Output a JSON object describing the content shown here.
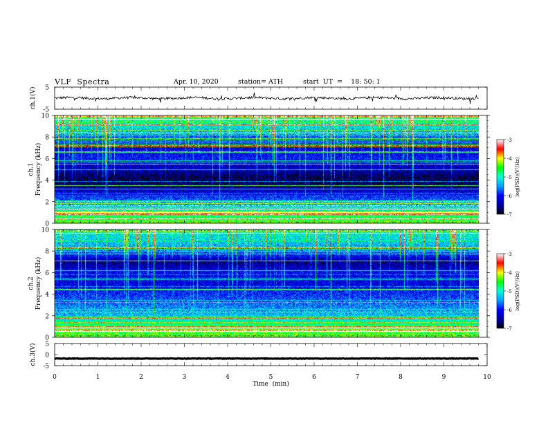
{
  "header": {
    "title": "VLF  Spectra",
    "date": "Apr. 10, 2020",
    "station": "station= ATH",
    "start": "start  UT  =    18: 50: 1"
  },
  "chart_data": [
    {
      "type": "line",
      "name": "ch.1 waveform",
      "ylabel": "ch.1(V)",
      "ylim": [
        -5,
        5
      ],
      "yticks": [
        "5",
        "-5"
      ],
      "xlim": [
        0,
        10
      ],
      "level": 0.0,
      "noise": "small fluctuations around 0 V with occasional spikes"
    },
    {
      "type": "heatmap",
      "name": "ch.1 spectrogram",
      "ylabel": "ch.1\nFrequency (kHz)",
      "ylim": [
        0,
        10
      ],
      "yticks": [
        "0",
        "2",
        "4",
        "6",
        "8",
        "10"
      ],
      "xlim": [
        0,
        9.8
      ],
      "colorbar": {
        "label": "log(PSD)(V²/Hz)",
        "range": [
          -7,
          -3
        ],
        "ticks": [
          "-3",
          "-4",
          "-5",
          "-6",
          "-7"
        ],
        "colors": [
          "#000000",
          "#0000ff",
          "#00ffff",
          "#00ff00",
          "#ffff00",
          "#ff0000",
          "#ffffff"
        ]
      },
      "profile_khz_to_logpsd": [
        [
          0,
          -4.4
        ],
        [
          1,
          -4.8
        ],
        [
          2,
          -5.6
        ],
        [
          3,
          -6.3
        ],
        [
          4,
          -6.9
        ],
        [
          5,
          -6.4
        ],
        [
          6,
          -6.0
        ],
        [
          7,
          -6.2
        ],
        [
          8,
          -5.7
        ],
        [
          9,
          -5.1
        ],
        [
          10,
          -4.6
        ]
      ]
    },
    {
      "type": "heatmap",
      "name": "ch.2 spectrogram",
      "ylabel": "ch.2\nFrequency (kHz)",
      "ylim": [
        0,
        10
      ],
      "yticks": [
        "0",
        "2",
        "4",
        "6",
        "8",
        "10"
      ],
      "xlim": [
        0,
        9.8
      ],
      "colorbar": {
        "label": "log(PSD)(V²/Hz)",
        "range": [
          -7,
          -3
        ],
        "ticks": [
          "-3",
          "-4",
          "-5",
          "-6",
          "-7"
        ],
        "colors": [
          "#000000",
          "#0000ff",
          "#00ffff",
          "#00ff00",
          "#ffff00",
          "#ff0000",
          "#ffffff"
        ]
      },
      "profile_khz_to_logpsd": [
        [
          0,
          -4.4
        ],
        [
          1,
          -4.6
        ],
        [
          2,
          -5.3
        ],
        [
          3,
          -5.6
        ],
        [
          4,
          -5.9
        ],
        [
          5,
          -6.2
        ],
        [
          6,
          -6.1
        ],
        [
          7,
          -6.6
        ],
        [
          8,
          -5.6
        ],
        [
          9,
          -5.2
        ],
        [
          10,
          -5.0
        ]
      ]
    },
    {
      "type": "line",
      "name": "ch.3 waveform",
      "ylabel": "ch.3(V)",
      "ylim": [
        -5,
        5
      ],
      "yticks": [
        "5",
        "0",
        "-5"
      ],
      "xlim": [
        0,
        10
      ],
      "level": -1.8,
      "noise": "nearly flat thick trace"
    }
  ],
  "xaxis": {
    "label": "Time  (min)",
    "ticks": [
      "0",
      "1",
      "2",
      "3",
      "4",
      "5",
      "6",
      "7",
      "8",
      "9",
      "10"
    ]
  }
}
